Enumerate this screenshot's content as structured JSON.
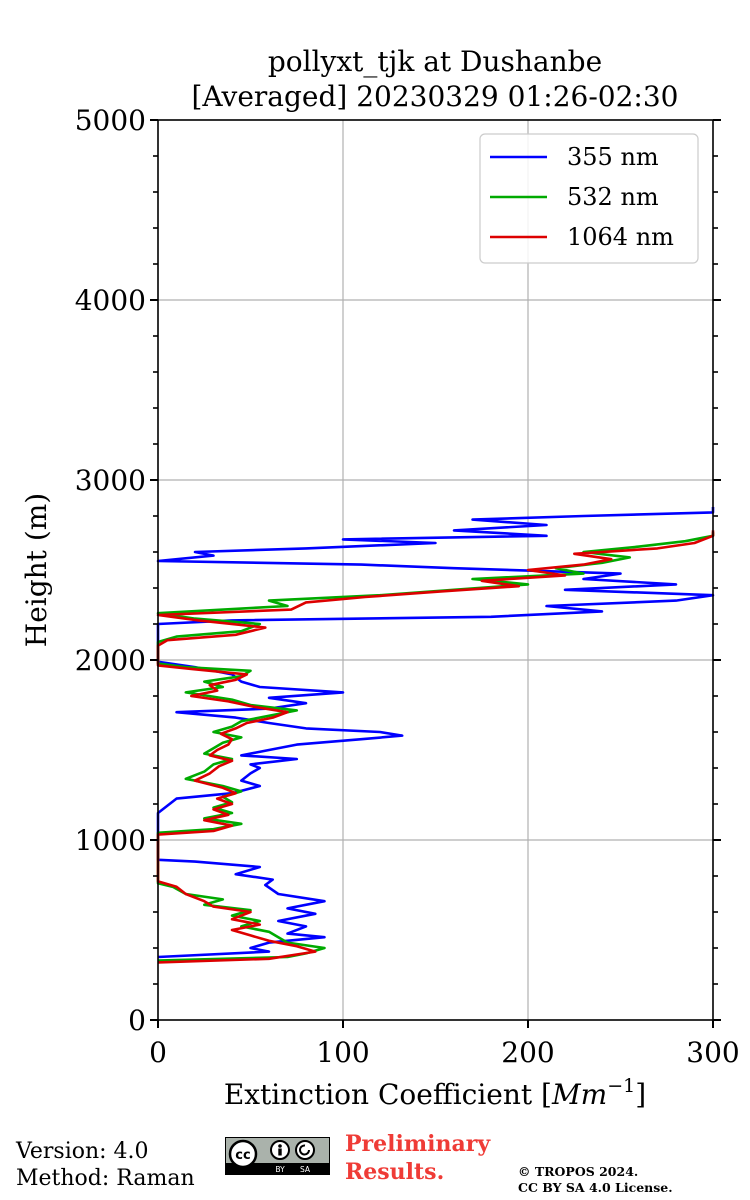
{
  "chart_data": {
    "type": "line",
    "title_line1": "pollyxt_tjk at Dushanbe",
    "title_line2": "[Averaged] 20230329 01:26-02:30",
    "xlabel_text": "Extinction Coefficient [",
    "xlabel_math": "Mm",
    "xlabel_sup": "−1",
    "xlabel_close": "]",
    "ylabel": "Height (m)",
    "xlim": [
      0,
      300
    ],
    "ylim": [
      0,
      5000
    ],
    "xticks": [
      0,
      100,
      200,
      300
    ],
    "xtick_labels": [
      "0",
      "100",
      "200",
      "300"
    ],
    "yticks": [
      0,
      1000,
      2000,
      3000,
      4000,
      5000
    ],
    "ytick_labels": [
      "0",
      "1000",
      "2000",
      "3000",
      "4000",
      "5000"
    ],
    "grid": true,
    "legend_location": "top-right",
    "series": [
      {
        "name": "355 nm",
        "color": "#0000ff",
        "points": [
          [
            0,
            350
          ],
          [
            60,
            380
          ],
          [
            50,
            400
          ],
          [
            60,
            430
          ],
          [
            90,
            460
          ],
          [
            70,
            480
          ],
          [
            80,
            520
          ],
          [
            65,
            550
          ],
          [
            85,
            590
          ],
          [
            70,
            620
          ],
          [
            90,
            660
          ],
          [
            65,
            700
          ],
          [
            58,
            750
          ],
          [
            62,
            780
          ],
          [
            42,
            810
          ],
          [
            55,
            850
          ],
          [
            20,
            880
          ],
          [
            0,
            890
          ],
          [
            0,
            1000
          ],
          [
            0,
            1150
          ],
          [
            10,
            1230
          ],
          [
            40,
            1260
          ],
          [
            55,
            1300
          ],
          [
            45,
            1330
          ],
          [
            50,
            1370
          ],
          [
            55,
            1400
          ],
          [
            50,
            1420
          ],
          [
            75,
            1450
          ],
          [
            45,
            1470
          ],
          [
            60,
            1500
          ],
          [
            75,
            1530
          ],
          [
            110,
            1560
          ],
          [
            132,
            1580
          ],
          [
            120,
            1600
          ],
          [
            80,
            1620
          ],
          [
            60,
            1650
          ],
          [
            42,
            1680
          ],
          [
            10,
            1710
          ],
          [
            60,
            1730
          ],
          [
            80,
            1760
          ],
          [
            60,
            1790
          ],
          [
            100,
            1820
          ],
          [
            55,
            1850
          ],
          [
            45,
            1880
          ],
          [
            40,
            1920
          ],
          [
            20,
            1960
          ],
          [
            0,
            1990
          ],
          [
            0,
            2100
          ],
          [
            0,
            2200
          ],
          [
            40,
            2220
          ],
          [
            180,
            2240
          ],
          [
            240,
            2270
          ],
          [
            210,
            2300
          ],
          [
            280,
            2330
          ],
          [
            300,
            2360
          ],
          [
            220,
            2390
          ],
          [
            280,
            2420
          ],
          [
            230,
            2450
          ],
          [
            250,
            2480
          ],
          [
            160,
            2510
          ],
          [
            110,
            2530
          ],
          [
            0,
            2550
          ],
          [
            30,
            2580
          ],
          [
            20,
            2600
          ],
          [
            80,
            2620
          ],
          [
            150,
            2650
          ],
          [
            100,
            2670
          ],
          [
            210,
            2690
          ],
          [
            160,
            2720
          ],
          [
            210,
            2750
          ],
          [
            170,
            2780
          ],
          [
            230,
            2800
          ],
          [
            300,
            2820
          ],
          [
            300,
            2850
          ]
        ]
      },
      {
        "name": "532 nm",
        "color": "#00aa00",
        "points": [
          [
            0,
            330
          ],
          [
            70,
            350
          ],
          [
            80,
            370
          ],
          [
            90,
            400
          ],
          [
            70,
            430
          ],
          [
            65,
            460
          ],
          [
            60,
            490
          ],
          [
            45,
            520
          ],
          [
            55,
            550
          ],
          [
            40,
            580
          ],
          [
            50,
            610
          ],
          [
            25,
            640
          ],
          [
            35,
            670
          ],
          [
            15,
            700
          ],
          [
            8,
            740
          ],
          [
            0,
            760
          ],
          [
            0,
            800
          ],
          [
            0,
            900
          ],
          [
            0,
            1040
          ],
          [
            30,
            1060
          ],
          [
            45,
            1090
          ],
          [
            25,
            1120
          ],
          [
            40,
            1150
          ],
          [
            30,
            1180
          ],
          [
            40,
            1210
          ],
          [
            35,
            1240
          ],
          [
            45,
            1270
          ],
          [
            35,
            1300
          ],
          [
            15,
            1340
          ],
          [
            25,
            1380
          ],
          [
            30,
            1420
          ],
          [
            40,
            1450
          ],
          [
            25,
            1480
          ],
          [
            30,
            1510
          ],
          [
            35,
            1540
          ],
          [
            45,
            1570
          ],
          [
            30,
            1600
          ],
          [
            40,
            1630
          ],
          [
            45,
            1660
          ],
          [
            60,
            1690
          ],
          [
            75,
            1720
          ],
          [
            50,
            1750
          ],
          [
            40,
            1780
          ],
          [
            15,
            1820
          ],
          [
            35,
            1850
          ],
          [
            25,
            1880
          ],
          [
            45,
            1910
          ],
          [
            50,
            1940
          ],
          [
            15,
            1960
          ],
          [
            0,
            1980
          ],
          [
            0,
            2100
          ],
          [
            10,
            2130
          ],
          [
            45,
            2160
          ],
          [
            55,
            2200
          ],
          [
            20,
            2230
          ],
          [
            0,
            2260
          ],
          [
            70,
            2300
          ],
          [
            60,
            2330
          ],
          [
            120,
            2360
          ],
          [
            160,
            2390
          ],
          [
            200,
            2420
          ],
          [
            170,
            2450
          ],
          [
            230,
            2480
          ],
          [
            215,
            2510
          ],
          [
            240,
            2540
          ],
          [
            255,
            2570
          ],
          [
            230,
            2600
          ],
          [
            260,
            2630
          ],
          [
            285,
            2660
          ],
          [
            300,
            2690
          ],
          [
            300,
            2710
          ]
        ]
      },
      {
        "name": "1064 nm",
        "color": "#dd0000",
        "points": [
          [
            0,
            320
          ],
          [
            60,
            340
          ],
          [
            85,
            380
          ],
          [
            75,
            410
          ],
          [
            60,
            440
          ],
          [
            50,
            470
          ],
          [
            40,
            500
          ],
          [
            55,
            530
          ],
          [
            40,
            560
          ],
          [
            50,
            600
          ],
          [
            30,
            630
          ],
          [
            25,
            660
          ],
          [
            15,
            700
          ],
          [
            10,
            740
          ],
          [
            0,
            770
          ],
          [
            0,
            850
          ],
          [
            0,
            1000
          ],
          [
            0,
            1030
          ],
          [
            30,
            1050
          ],
          [
            40,
            1080
          ],
          [
            25,
            1110
          ],
          [
            38,
            1140
          ],
          [
            30,
            1170
          ],
          [
            40,
            1200
          ],
          [
            32,
            1230
          ],
          [
            42,
            1260
          ],
          [
            35,
            1290
          ],
          [
            20,
            1330
          ],
          [
            28,
            1370
          ],
          [
            33,
            1410
          ],
          [
            40,
            1440
          ],
          [
            28,
            1470
          ],
          [
            32,
            1500
          ],
          [
            38,
            1530
          ],
          [
            40,
            1560
          ],
          [
            34,
            1590
          ],
          [
            42,
            1620
          ],
          [
            48,
            1650
          ],
          [
            62,
            1680
          ],
          [
            70,
            1710
          ],
          [
            52,
            1740
          ],
          [
            38,
            1770
          ],
          [
            18,
            1800
          ],
          [
            32,
            1830
          ],
          [
            28,
            1860
          ],
          [
            42,
            1890
          ],
          [
            48,
            1920
          ],
          [
            18,
            1950
          ],
          [
            0,
            1970
          ],
          [
            0,
            2080
          ],
          [
            5,
            2110
          ],
          [
            42,
            2140
          ],
          [
            58,
            2180
          ],
          [
            22,
            2220
          ],
          [
            0,
            2250
          ],
          [
            72,
            2280
          ],
          [
            80,
            2320
          ],
          [
            112,
            2350
          ],
          [
            152,
            2380
          ],
          [
            195,
            2410
          ],
          [
            175,
            2440
          ],
          [
            220,
            2470
          ],
          [
            200,
            2500
          ],
          [
            230,
            2530
          ],
          [
            245,
            2560
          ],
          [
            225,
            2590
          ],
          [
            270,
            2620
          ],
          [
            290,
            2650
          ],
          [
            300,
            2690
          ],
          [
            300,
            2720
          ]
        ]
      }
    ]
  },
  "footer": {
    "version": "Version: 4.0",
    "method": "Method: Raman",
    "preliminary_line1": "Preliminary",
    "preliminary_line2": "Results.",
    "copyright_line1": "© TROPOS 2024.",
    "copyright_line2": "CC BY SA 4.0 License.",
    "license_badge_left": "cc",
    "license_badge_by": "BY",
    "license_badge_sa": "SA"
  }
}
